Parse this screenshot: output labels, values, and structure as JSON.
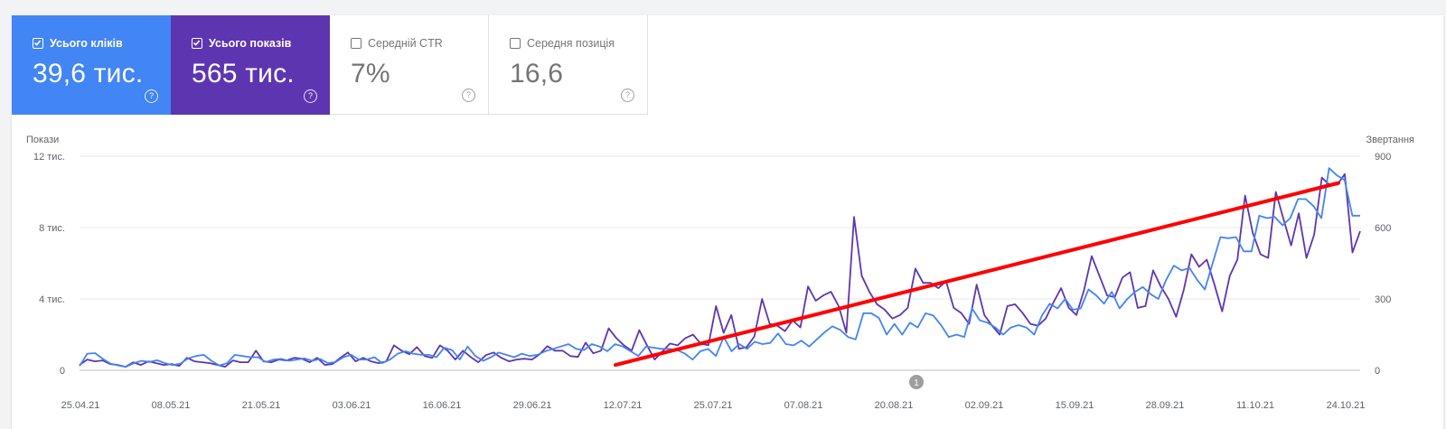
{
  "metrics": [
    {
      "label": "Усього кліків",
      "value": "39,6 тис.",
      "checked": true,
      "color": "#4285f4"
    },
    {
      "label": "Усього показів",
      "value": "565 тис.",
      "checked": true,
      "color": "#5e35b1"
    },
    {
      "label": "Середній CTR",
      "value": "7%",
      "checked": false
    },
    {
      "label": "Середня позиція",
      "value": "16,6",
      "checked": false
    }
  ],
  "help_glyph": "?",
  "annotation_badge": "1",
  "chart_data": {
    "type": "line",
    "left_axis": {
      "title": "Покази",
      "ticks": [
        {
          "value": 0,
          "label": "0"
        },
        {
          "value": 4000,
          "label": "4 тис."
        },
        {
          "value": 8000,
          "label": "8 тис."
        },
        {
          "value": 12000,
          "label": "12 тис."
        }
      ],
      "range": [
        0,
        12000
      ]
    },
    "right_axis": {
      "title": "Звертання",
      "ticks": [
        {
          "value": 0,
          "label": "0"
        },
        {
          "value": 300,
          "label": "300"
        },
        {
          "value": 600,
          "label": "600"
        },
        {
          "value": 900,
          "label": "900"
        }
      ],
      "range": [
        0,
        900
      ]
    },
    "x_labels": [
      "25.04.21",
      "08.05.21",
      "21.05.21",
      "03.06.21",
      "16.06.21",
      "29.06.21",
      "12.07.21",
      "25.07.21",
      "07.08.21",
      "20.08.21",
      "02.09.21",
      "15.09.21",
      "28.09.21",
      "11.10.21",
      "24.10.21"
    ],
    "grid": true,
    "series": [
      {
        "name": "Усього показів",
        "axis": "left",
        "color": "#5e35b1",
        "values": [
          300,
          600,
          500,
          550,
          350,
          300,
          200,
          450,
          300,
          500,
          400,
          300,
          350,
          250,
          700,
          500,
          450,
          400,
          300,
          200,
          550,
          450,
          450,
          1100,
          500,
          450,
          600,
          550,
          700,
          650,
          450,
          700,
          300,
          350,
          700,
          1000,
          500,
          700,
          500,
          400,
          500,
          1400,
          1100,
          900,
          1300,
          800,
          700,
          1400,
          1100,
          600,
          1100,
          750,
          450,
          850,
          1000,
          700,
          500,
          600,
          650,
          600,
          900,
          1350,
          1100,
          1100,
          800,
          750,
          1550,
          950,
          1100,
          2350,
          1800,
          1400,
          1100,
          2250,
          1400,
          600,
          1050,
          1500,
          1400,
          1800,
          2000,
          1500,
          1400,
          3600,
          2100,
          3100,
          1200,
          1300,
          1900,
          4000,
          2600,
          2500,
          2200,
          2800,
          2400,
          4700,
          3900,
          4200,
          4400,
          3600,
          2100,
          8600,
          5300,
          4400,
          3700,
          3400,
          2900,
          3100,
          3500,
          5700,
          4900,
          4900,
          4600,
          5000,
          3500,
          3200,
          2600,
          4800,
          3100,
          2500,
          2000,
          3600,
          3700,
          3200,
          2600,
          2500,
          2900,
          3800,
          4600,
          3500,
          3100,
          4500,
          6400,
          5300,
          4200,
          4100,
          5200,
          5500,
          3500,
          3600,
          5600,
          4700,
          4000,
          3000,
          4500,
          6500,
          5800,
          6200,
          4800,
          3300,
          5300,
          6200,
          9800,
          7700,
          6500,
          6300,
          10000,
          8500,
          7000,
          8800,
          6300,
          7600,
          10800,
          10400,
          10400,
          11000,
          6600,
          7800
        ]
      },
      {
        "name": "Усього кліків",
        "axis": "right",
        "color": "#4285f4",
        "values": [
          18,
          70,
          72,
          48,
          28,
          20,
          15,
          30,
          40,
          35,
          42,
          30,
          22,
          28,
          50,
          60,
          65,
          40,
          20,
          30,
          65,
          60,
          55,
          55,
          35,
          45,
          48,
          40,
          45,
          50,
          40,
          48,
          30,
          35,
          55,
          65,
          45,
          45,
          55,
          30,
          45,
          70,
          80,
          70,
          65,
          65,
          55,
          95,
          85,
          45,
          100,
          60,
          40,
          55,
          75,
          65,
          55,
          70,
          60,
          65,
          80,
          90,
          100,
          110,
          90,
          85,
          110,
          100,
          80,
          110,
          100,
          80,
          60,
          100,
          95,
          90,
          90,
          85,
          70,
          45,
          80,
          90,
          60,
          140,
          80,
          110,
          90,
          120,
          110,
          115,
          155,
          110,
          105,
          125,
          100,
          130,
          160,
          185,
          170,
          140,
          130,
          240,
          240,
          220,
          150,
          195,
          150,
          200,
          180,
          240,
          230,
          190,
          140,
          150,
          140,
          260,
          210,
          200,
          180,
          150,
          180,
          190,
          180,
          150,
          230,
          280,
          260,
          300,
          255,
          260,
          340,
          315,
          280,
          330,
          260,
          300,
          330,
          350,
          320,
          300,
          380,
          440,
          420,
          430,
          380,
          340,
          450,
          560,
          555,
          560,
          500,
          500,
          650,
          640,
          645,
          610,
          640,
          720,
          720,
          690,
          640,
          850,
          820,
          800,
          650,
          650
        ]
      }
    ]
  },
  "annotation_line": {
    "color": "#ff0000",
    "from": {
      "date": "12.07.21",
      "impressions": 300
    },
    "to": {
      "date": "24.10.21",
      "impressions": 10500
    }
  }
}
